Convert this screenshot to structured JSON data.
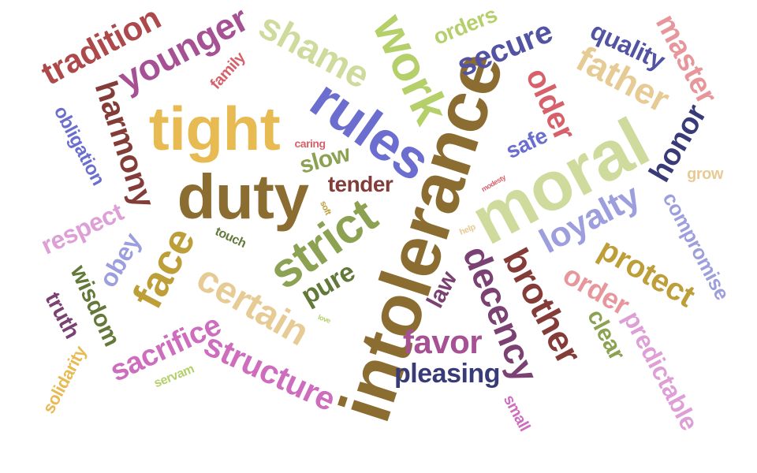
{
  "words": [
    {
      "text": "intolerance",
      "color": "#8c6d31"
    },
    {
      "text": "moral",
      "color": "#cedb9c"
    },
    {
      "text": "duty",
      "color": "#8c6d31"
    },
    {
      "text": "tight",
      "color": "#e7ba52"
    },
    {
      "text": "rules",
      "color": "#6b6ecf"
    },
    {
      "text": "strict",
      "color": "#8ca252"
    },
    {
      "text": "work",
      "color": "#b5cf6b"
    },
    {
      "text": "shame",
      "color": "#cedb9c"
    },
    {
      "text": "younger",
      "color": "#a55194"
    },
    {
      "text": "tradition",
      "color": "#ad494a"
    },
    {
      "text": "harmony",
      "color": "#843c39"
    },
    {
      "text": "face",
      "color": "#bd9e39"
    },
    {
      "text": "certain",
      "color": "#e7cb94"
    },
    {
      "text": "brother",
      "color": "#843c39"
    },
    {
      "text": "decency",
      "color": "#7b4173"
    },
    {
      "text": "loyalty",
      "color": "#9c9ede"
    },
    {
      "text": "father",
      "color": "#e7cb94"
    },
    {
      "text": "older",
      "color": "#d6616b"
    },
    {
      "text": "secure",
      "color": "#5254a3"
    },
    {
      "text": "master",
      "color": "#e7969c"
    },
    {
      "text": "quality",
      "color": "#5254a3"
    },
    {
      "text": "honor",
      "color": "#393b79"
    },
    {
      "text": "protect",
      "color": "#bd9e39"
    },
    {
      "text": "order",
      "color": "#e7969c"
    },
    {
      "text": "favor",
      "color": "#a55194"
    },
    {
      "text": "pleasing",
      "color": "#393b79"
    },
    {
      "text": "structure",
      "color": "#ce6dbd"
    },
    {
      "text": "sacrifice",
      "color": "#ce6dbd"
    },
    {
      "text": "pure",
      "color": "#637939"
    },
    {
      "text": "law",
      "color": "#7b4173"
    },
    {
      "text": "clear",
      "color": "#8ca252"
    },
    {
      "text": "predictable",
      "color": "#de9ed6"
    },
    {
      "text": "compromise",
      "color": "#9c9ede"
    },
    {
      "text": "respect",
      "color": "#de9ed6"
    },
    {
      "text": "obey",
      "color": "#9c9ede"
    },
    {
      "text": "wisdom",
      "color": "#637939"
    },
    {
      "text": "truth",
      "color": "#7b4173"
    },
    {
      "text": "solidarity",
      "color": "#e7ba52"
    },
    {
      "text": "obligation",
      "color": "#6b6ecf"
    },
    {
      "text": "tender",
      "color": "#843c39"
    },
    {
      "text": "slow",
      "color": "#8ca252"
    },
    {
      "text": "safe",
      "color": "#6b6ecf"
    },
    {
      "text": "orders",
      "color": "#b5cf6b"
    },
    {
      "text": "family",
      "color": "#d6616b"
    },
    {
      "text": "caring",
      "color": "#d6616b"
    },
    {
      "text": "grow",
      "color": "#e7cb94"
    },
    {
      "text": "small",
      "color": "#ce6dbd"
    },
    {
      "text": "servam",
      "color": "#b5cf6b"
    },
    {
      "text": "touch",
      "color": "#637939"
    },
    {
      "text": "soft",
      "color": "#bd9e39"
    },
    {
      "text": "help",
      "color": "#e7cb94"
    },
    {
      "text": "modesty",
      "color": "#d6616b"
    },
    {
      "text": "love",
      "color": "#b5cf6b"
    }
  ]
}
